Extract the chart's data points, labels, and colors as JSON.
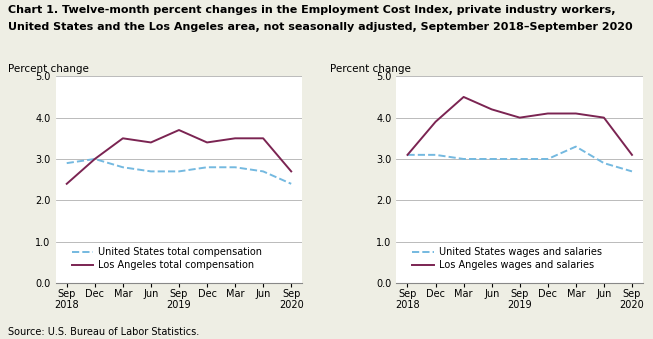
{
  "title_line1": "Chart 1. Twelve-month percent changes in the Employment Cost Index, private industry workers,",
  "title_line2": "United States and the Los Angeles area, not seasonally adjusted, September 2018–September 2020",
  "x_labels": [
    "Sep\n2018",
    "Dec",
    "Mar",
    "Jun",
    "Sep\n2019",
    "Dec",
    "Mar",
    "Jun",
    "Sep\n2020"
  ],
  "left_chart": {
    "ylabel": "Percent change",
    "ylim": [
      0.0,
      5.0
    ],
    "yticks": [
      0.0,
      1.0,
      2.0,
      3.0,
      4.0,
      5.0
    ],
    "us_total_comp": [
      2.9,
      3.0,
      2.8,
      2.7,
      2.7,
      2.8,
      2.8,
      2.7,
      2.4
    ],
    "la_total_comp": [
      2.4,
      3.0,
      3.5,
      3.4,
      3.7,
      3.4,
      3.5,
      3.5,
      2.7
    ],
    "legend_us": "United States total compensation",
    "legend_la": "Los Angeles total compensation"
  },
  "right_chart": {
    "ylabel": "Percent change",
    "ylim": [
      0.0,
      5.0
    ],
    "yticks": [
      0.0,
      1.0,
      2.0,
      3.0,
      4.0,
      5.0
    ],
    "us_wages_salaries": [
      3.1,
      3.1,
      3.0,
      3.0,
      3.0,
      3.0,
      3.3,
      2.9,
      2.7
    ],
    "la_wages_salaries": [
      3.1,
      3.9,
      4.5,
      4.2,
      4.0,
      4.1,
      4.1,
      4.0,
      3.1
    ],
    "legend_us": "United States wages and salaries",
    "legend_la": "Los Angeles wages and salaries"
  },
  "us_color": "#74b9e0",
  "la_color": "#7b2452",
  "source": "Source: U.S. Bureau of Labor Statistics.",
  "bg_color": "#eeeee4",
  "plot_bg_color": "#ffffff",
  "grid_color": "#b0b0b0",
  "title_fontsize": 8.0,
  "ylabel_fontsize": 7.5,
  "tick_fontsize": 7.0,
  "legend_fontsize": 7.0,
  "source_fontsize": 7.0
}
